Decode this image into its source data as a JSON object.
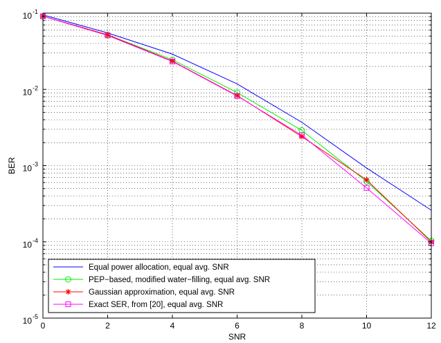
{
  "chart_data": {
    "type": "line",
    "title": "",
    "xlabel": "SNR",
    "ylabel": "BER",
    "xlim": [
      0,
      12
    ],
    "ylim": [
      1e-05,
      0.1
    ],
    "yscale": "log",
    "grid": true,
    "legend_position": "bottom-left",
    "x_ticks": [
      0,
      2,
      4,
      6,
      8,
      10,
      12
    ],
    "x_tick_labels": [
      "0",
      "2",
      "4",
      "6",
      "8",
      "10",
      "12"
    ],
    "y_ticks": [
      1e-05,
      0.0001,
      0.001,
      0.01,
      0.1
    ],
    "y_tick_labels": [
      {
        "base": "10",
        "exp": "-5"
      },
      {
        "base": "10",
        "exp": "-4"
      },
      {
        "base": "10",
        "exp": "-3"
      },
      {
        "base": "10",
        "exp": "-2"
      },
      {
        "base": "10",
        "exp": "-1"
      }
    ],
    "x": [
      0,
      2,
      4,
      6,
      8,
      10,
      12
    ],
    "series": [
      {
        "name": "Equal power allocation, equal avg. SNR",
        "color": "#0000ff",
        "marker": "none",
        "values": [
          0.095,
          0.055,
          0.029,
          0.0118,
          0.0037,
          0.00093,
          0.00026
        ]
      },
      {
        "name": "PEP−based, modified water−filling, equal avg. SNR",
        "color": "#00ee00",
        "marker": "circle",
        "values": [
          0.091,
          0.052,
          0.0245,
          0.0091,
          0.0029,
          0.00062,
          0.000103
        ]
      },
      {
        "name": "Gaussian approximation, equal avg. SNR",
        "color": "#ff0000",
        "marker": "star",
        "values": [
          0.091,
          0.052,
          0.0235,
          0.0083,
          0.0024,
          0.00065,
          0.0001
        ]
      },
      {
        "name": "Exact SER, from [20], equal avg. SNR",
        "color": "#ff00ff",
        "marker": "square",
        "values": [
          0.091,
          0.051,
          0.0232,
          0.0082,
          0.0025,
          0.00051,
          9.6e-05
        ]
      }
    ]
  }
}
